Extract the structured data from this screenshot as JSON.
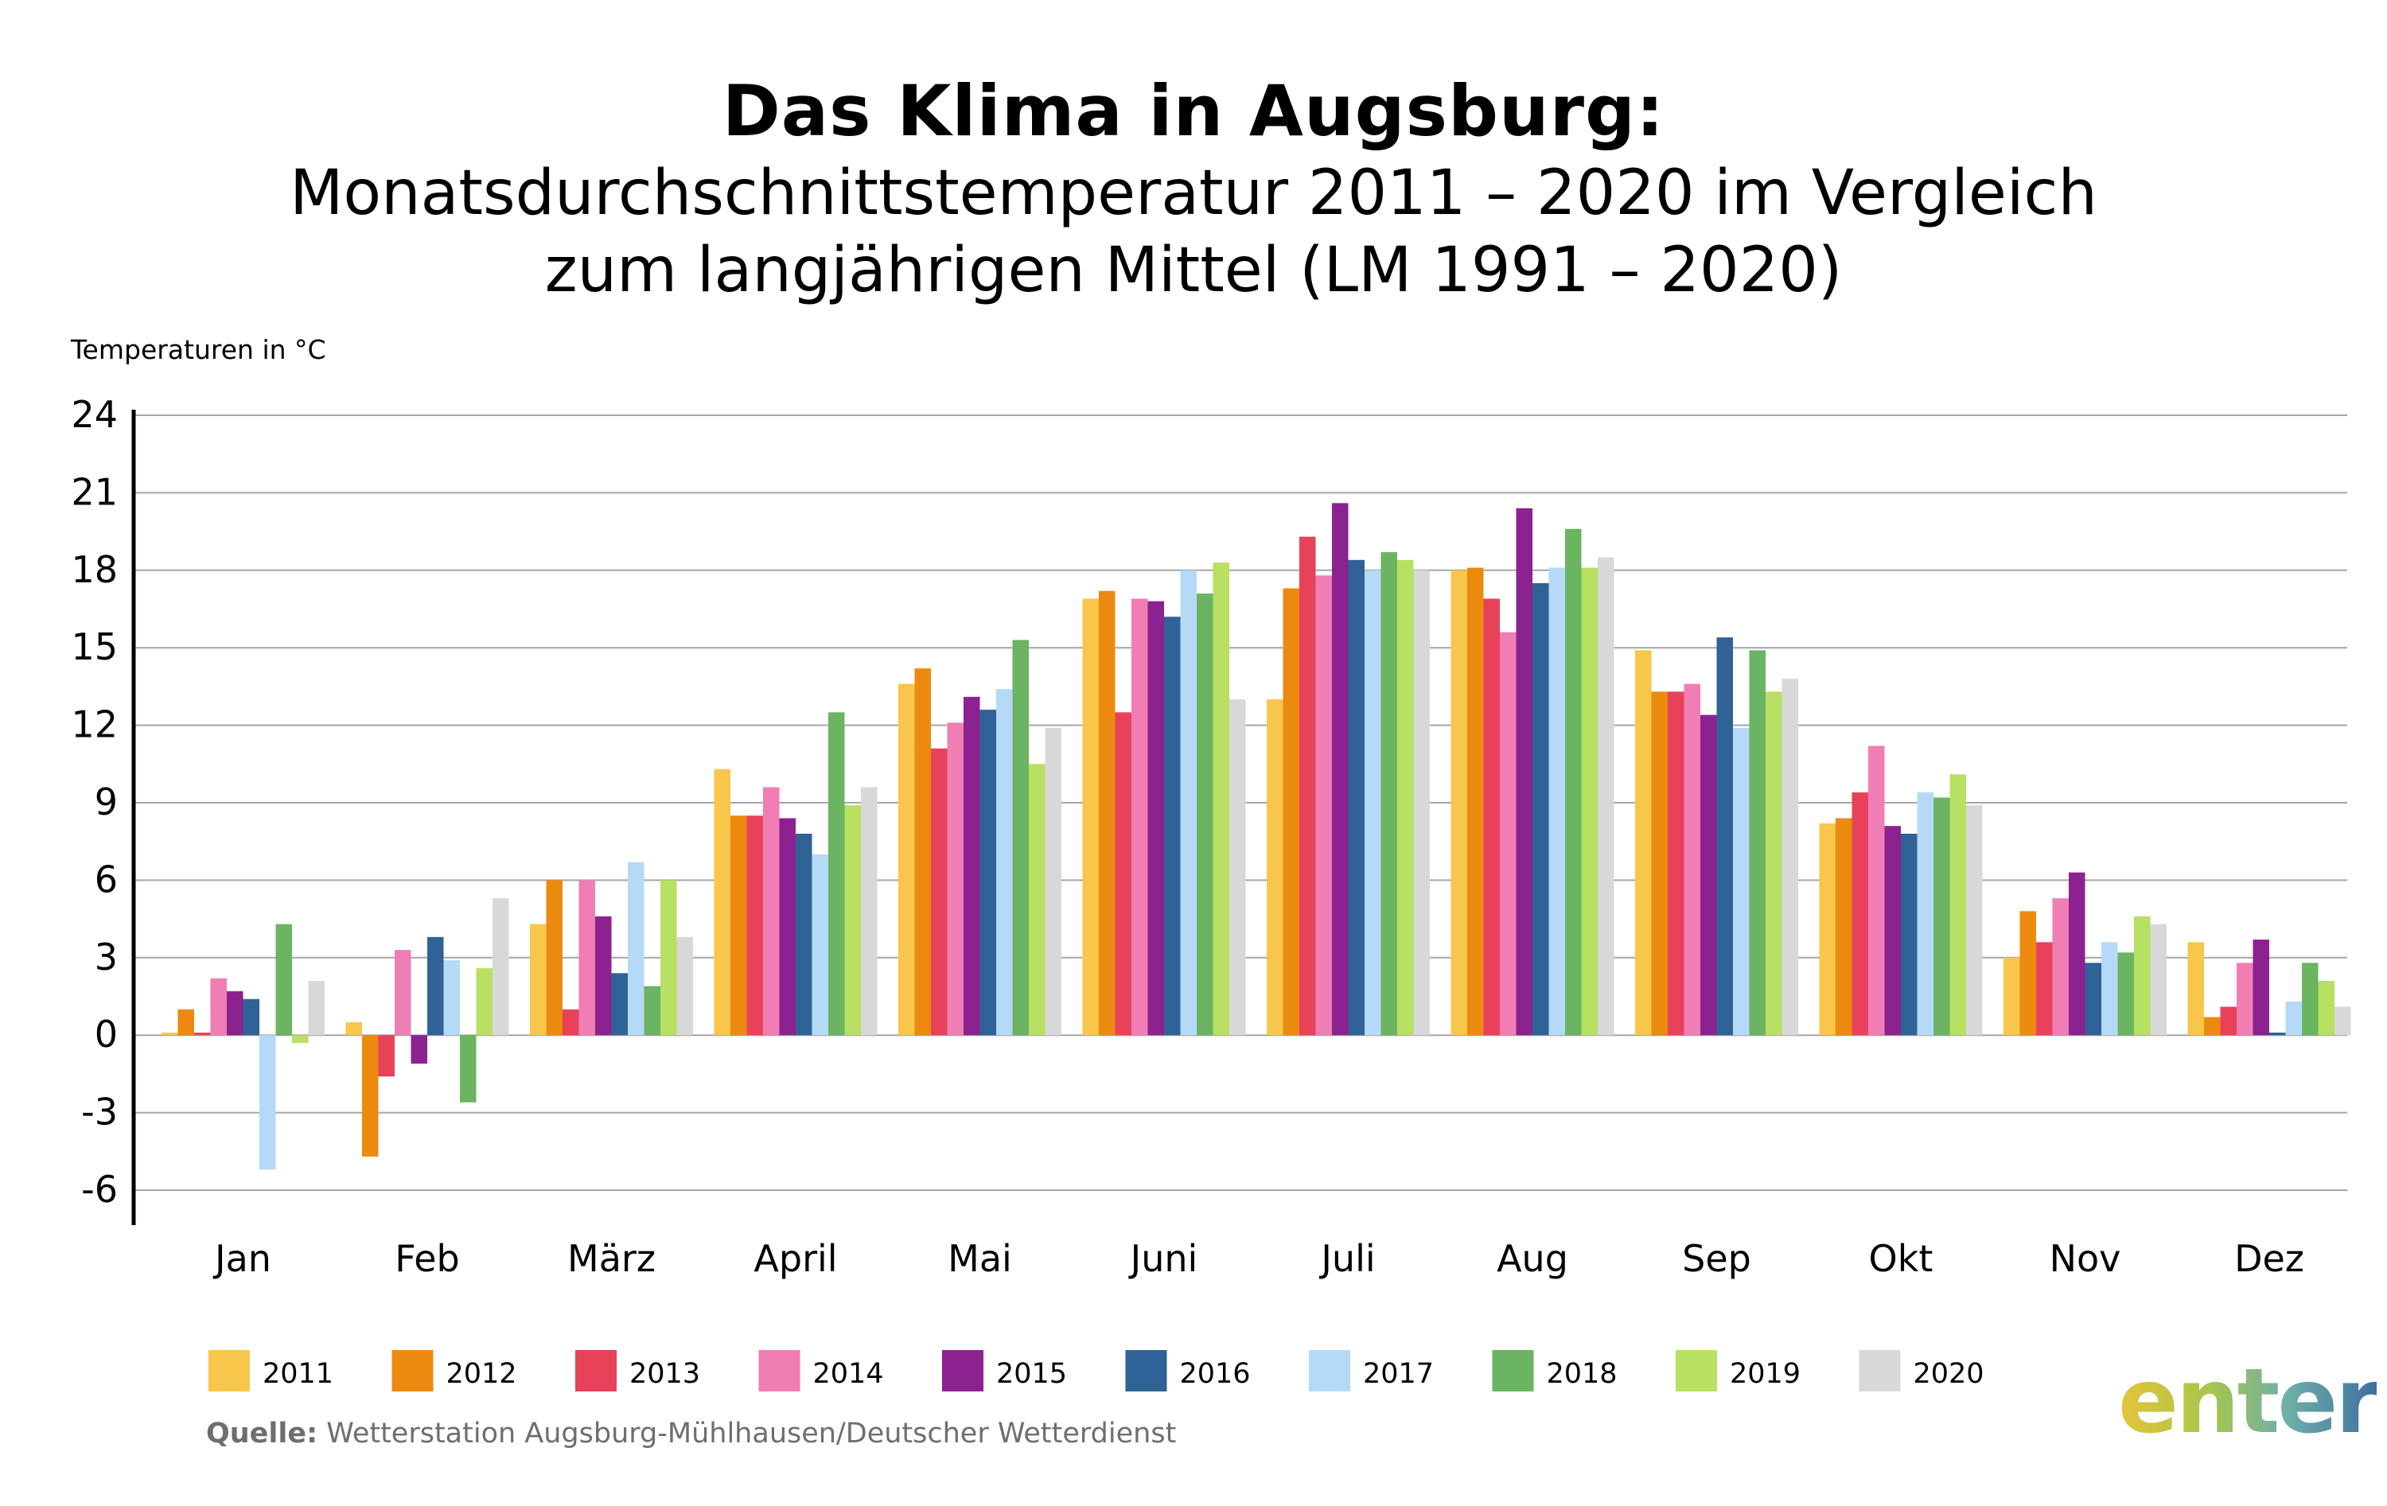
{
  "title": "Das Klima in Augsburg:",
  "subtitle_line1": "Monatsdurchschnittstemperatur 2011 – 2020 im Vergleich",
  "subtitle_line2": "zum langjährigen Mittel (LM 1991 – 2020)",
  "source_label": "Quelle:",
  "source_text": " Wetterstation Augsburg-Mühlhausen/Deutscher Wetterdienst",
  "logo_text": "enter",
  "chart_data": {
    "type": "bar",
    "ylabel": "Temperaturen in °C",
    "ylim": [
      -6,
      24
    ],
    "yticks": [
      24,
      21,
      18,
      15,
      12,
      9,
      6,
      3,
      0,
      -3,
      -6
    ],
    "grid": true,
    "legend_position": "bottom",
    "categories": [
      "Jan",
      "Feb",
      "März",
      "April",
      "Mai",
      "Juni",
      "Juli",
      "Aug",
      "Sep",
      "Okt",
      "Nov",
      "Dez"
    ],
    "series": [
      {
        "name": "2011",
        "color": "#f7c64a",
        "values": [
          0.1,
          0.5,
          4.3,
          10.3,
          13.6,
          16.9,
          13.0,
          18.0,
          14.9,
          8.2,
          3.0,
          3.6
        ]
      },
      {
        "name": "2012",
        "color": "#ec8a10",
        "values": [
          1.0,
          -4.7,
          6.0,
          8.5,
          14.2,
          17.2,
          17.3,
          18.1,
          13.3,
          8.4,
          4.8,
          0.7
        ]
      },
      {
        "name": "2013",
        "color": "#e8425a",
        "values": [
          0.1,
          -1.6,
          1.0,
          8.5,
          11.1,
          12.5,
          19.3,
          16.9,
          13.3,
          9.4,
          3.6,
          1.1
        ]
      },
      {
        "name": "2014",
        "color": "#f07eb5",
        "values": [
          2.2,
          3.3,
          6.0,
          9.6,
          12.1,
          16.9,
          17.8,
          15.6,
          13.6,
          11.2,
          5.3,
          2.8
        ]
      },
      {
        "name": "2015",
        "color": "#8b2290",
        "values": [
          1.7,
          -1.1,
          4.6,
          8.4,
          13.1,
          16.8,
          20.6,
          20.4,
          12.4,
          8.1,
          6.3,
          3.7
        ]
      },
      {
        "name": "2016",
        "color": "#2f6295",
        "values": [
          1.4,
          3.8,
          2.4,
          7.8,
          12.6,
          16.2,
          18.4,
          17.5,
          15.4,
          7.8,
          2.8,
          0.1
        ]
      },
      {
        "name": "2017",
        "color": "#b5daf8",
        "values": [
          -5.2,
          2.9,
          6.7,
          7.0,
          13.4,
          18.0,
          18.0,
          18.1,
          11.9,
          9.4,
          3.6,
          1.3
        ]
      },
      {
        "name": "2018",
        "color": "#6ab462",
        "values": [
          4.3,
          -2.6,
          1.9,
          12.5,
          15.3,
          17.1,
          18.7,
          19.6,
          14.9,
          9.2,
          3.2,
          2.8
        ]
      },
      {
        "name": "2019",
        "color": "#b8e062",
        "values": [
          -0.3,
          2.6,
          6.0,
          8.9,
          10.5,
          18.3,
          18.4,
          18.1,
          13.3,
          10.1,
          4.6,
          2.1
        ]
      },
      {
        "name": "2020",
        "color": "#d8d8d8",
        "values": [
          2.1,
          5.3,
          3.8,
          9.6,
          11.9,
          13.0,
          18.0,
          18.5,
          13.8,
          8.9,
          4.3,
          1.1
        ]
      }
    ]
  }
}
